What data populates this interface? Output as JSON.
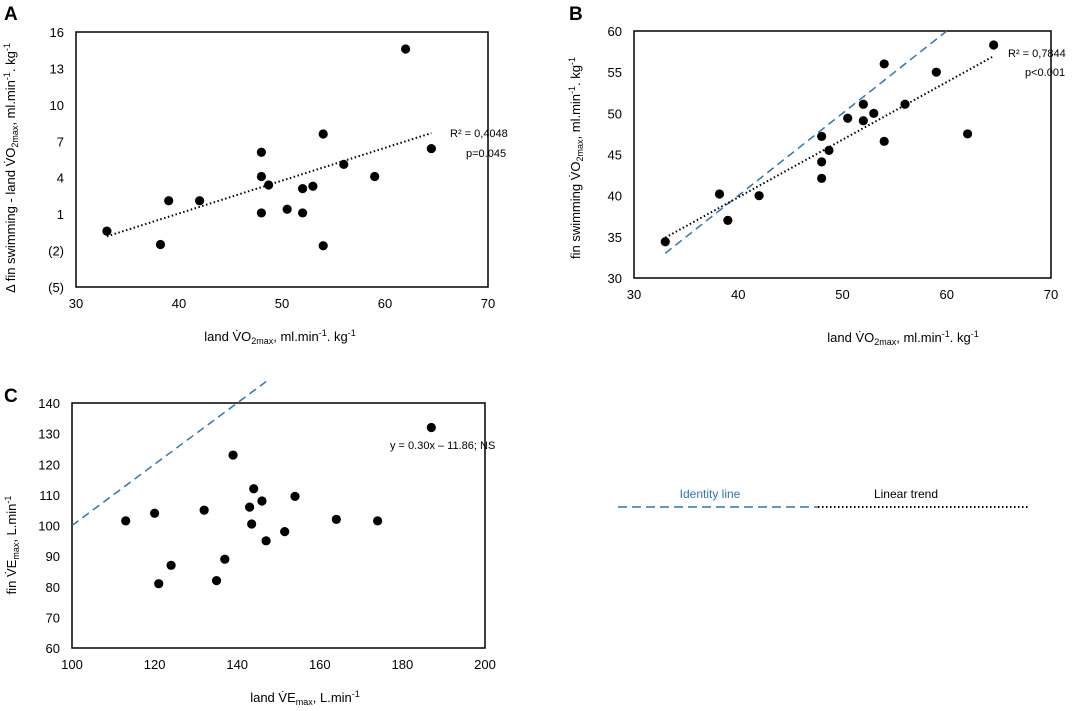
{
  "figure": {
    "panels": [
      "A",
      "B",
      "C"
    ],
    "legend": {
      "identity_label": "Identity line",
      "trend_label": "Linear trend",
      "identity_color": "#2E75B6",
      "trend_color": "#000000"
    },
    "point_color": "#000000"
  },
  "chart_data": [
    {
      "id": "A",
      "type": "scatter",
      "xlabel_main": "land V̇O",
      "xlabel_sub": "2max",
      "xlabel_rest": ", ml.min",
      "xlabel_sup": "-1",
      "xlabel_end": ". kg",
      "xlabel_sup2": "-1",
      "ylabel_main": "Δ fin swimming - land V̇O",
      "ylabel_sub": "2max",
      "ylabel_rest": ", ml.min",
      "ylabel_sup": "-1",
      "ylabel_end": ". kg",
      "ylabel_sup2": "-1",
      "xlim": [
        30,
        70
      ],
      "ylim": [
        -5,
        16
      ],
      "xticks": [
        30,
        40,
        50,
        60,
        70
      ],
      "yticks": [
        16,
        13,
        10,
        7,
        4,
        1,
        -2,
        -5
      ],
      "ytick_labels": [
        "16",
        "13",
        "10",
        "7",
        "4",
        "1",
        "(2)",
        "(5)"
      ],
      "points": [
        [
          33,
          -0.4
        ],
        [
          38.2,
          -1.5
        ],
        [
          39,
          2.1
        ],
        [
          42,
          2.1
        ],
        [
          48,
          6.1
        ],
        [
          48,
          4.1
        ],
        [
          48,
          1.1
        ],
        [
          48.7,
          3.4
        ],
        [
          50.5,
          1.4
        ],
        [
          52,
          3.1
        ],
        [
          52,
          1.1
        ],
        [
          53,
          3.3
        ],
        [
          54,
          7.6
        ],
        [
          54,
          -1.6
        ],
        [
          56,
          5.1
        ],
        [
          59,
          4.1
        ],
        [
          62,
          14.6
        ],
        [
          64.5,
          6.4
        ]
      ],
      "trend": {
        "slope": 0.27,
        "intercept": -9.74,
        "x_range": [
          33,
          64.5
        ]
      },
      "r2": "R² = 0,4048",
      "p": "p=0.045"
    },
    {
      "id": "B",
      "type": "scatter",
      "xlabel_main": "land V̇O",
      "xlabel_sub": "2max",
      "xlabel_rest": ", ml.min",
      "xlabel_sup": "-1",
      "xlabel_end": ". kg",
      "xlabel_sup2": "-1",
      "ylabel_main": "fin swimming  V̇O",
      "ylabel_sub": "2max",
      "ylabel_rest": ", ml.min",
      "ylabel_sup": "-1",
      "ylabel_end": ". kg",
      "ylabel_sup2": "-1",
      "xlim": [
        30,
        70
      ],
      "ylim": [
        30,
        60
      ],
      "xticks": [
        30,
        40,
        50,
        60,
        70
      ],
      "yticks": [
        30,
        35,
        40,
        45,
        50,
        55,
        60
      ],
      "points": [
        [
          33,
          34.4
        ],
        [
          38.2,
          40.2
        ],
        [
          39,
          37
        ],
        [
          42,
          40
        ],
        [
          48,
          47.2
        ],
        [
          48,
          44.1
        ],
        [
          48,
          42.1
        ],
        [
          48.7,
          45.5
        ],
        [
          50.5,
          49.4
        ],
        [
          52,
          51.1
        ],
        [
          52,
          49.1
        ],
        [
          53,
          50
        ],
        [
          54,
          56
        ],
        [
          54,
          46.6
        ],
        [
          56,
          51.1
        ],
        [
          59,
          55
        ],
        [
          62,
          47.5
        ],
        [
          64.5,
          58.3
        ]
      ],
      "trend": {
        "slope": 0.7,
        "intercept": 11.8,
        "x_range": [
          33,
          64.5
        ]
      },
      "identity": {
        "x_range": [
          33,
          60
        ]
      },
      "r2": "R² = 0,7844",
      "p": "p<0.001"
    },
    {
      "id": "C",
      "type": "scatter",
      "xlabel_main": "land V̇E",
      "xlabel_sub": "max",
      "xlabel_rest": ", L.min",
      "xlabel_sup": "-1",
      "ylabel_main": "fin  V̇E",
      "ylabel_sub": "max",
      "ylabel_rest": ", L.min",
      "ylabel_sup": "-1",
      "xlim": [
        100,
        200
      ],
      "ylim": [
        60,
        140
      ],
      "xticks": [
        100,
        120,
        140,
        160,
        180,
        200
      ],
      "yticks": [
        60,
        70,
        80,
        90,
        100,
        110,
        120,
        130,
        140
      ],
      "points": [
        [
          113,
          101.5
        ],
        [
          120,
          104
        ],
        [
          121,
          81
        ],
        [
          124,
          87
        ],
        [
          132,
          105
        ],
        [
          135,
          82
        ],
        [
          137,
          89
        ],
        [
          139,
          123
        ],
        [
          143,
          106
        ],
        [
          143.5,
          100.5
        ],
        [
          144,
          112
        ],
        [
          146,
          108
        ],
        [
          147,
          95
        ],
        [
          151.5,
          98
        ],
        [
          154,
          109.5
        ],
        [
          164,
          102
        ],
        [
          174,
          101.5
        ],
        [
          187,
          132
        ]
      ],
      "identity": {
        "x_range": [
          100,
          147
        ]
      },
      "equation": "y = 0.30x – 11.86; NS"
    }
  ]
}
